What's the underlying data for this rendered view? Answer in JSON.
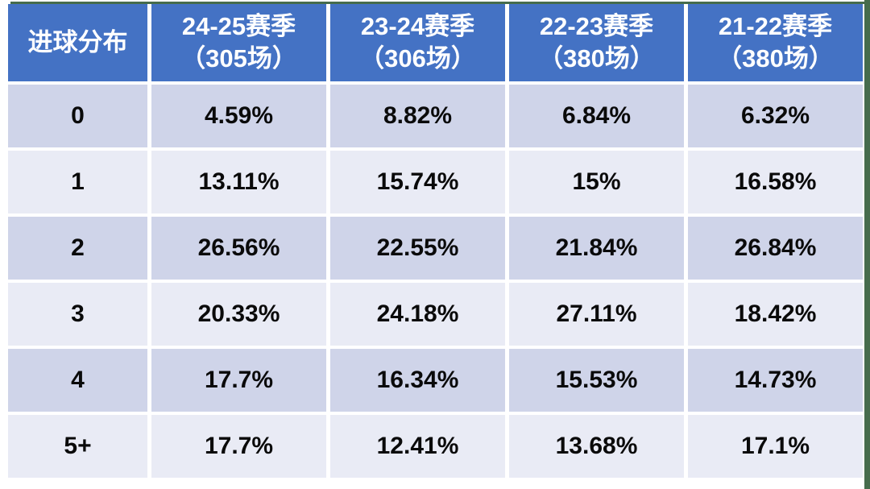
{
  "colors": {
    "header-bg": "#4472c4",
    "header-text": "#ffffff",
    "band-dark": "#cfd4e9",
    "band-light": "#e9ebf5",
    "cell-text": "#0a0a0a",
    "edge-green": "#466c4c",
    "page-bg": "#ffffff"
  },
  "table": {
    "columns": [
      {
        "label": "进球分布",
        "sub": ""
      },
      {
        "label": "24-25赛季",
        "sub": "（305场）"
      },
      {
        "label": "23-24赛季",
        "sub": "（306场）"
      },
      {
        "label": "22-23赛季",
        "sub": "（380场）"
      },
      {
        "label": "21-22赛季",
        "sub": "（380场）"
      }
    ],
    "rows": [
      {
        "label": "0",
        "values": [
          "4.59%",
          "8.82%",
          "6.84%",
          "6.32%"
        ]
      },
      {
        "label": "1",
        "values": [
          "13.11%",
          "15.74%",
          "15%",
          "16.58%"
        ]
      },
      {
        "label": "2",
        "values": [
          "26.56%",
          "22.55%",
          "21.84%",
          "26.84%"
        ]
      },
      {
        "label": "3",
        "values": [
          "20.33%",
          "24.18%",
          "27.11%",
          "18.42%"
        ]
      },
      {
        "label": "4",
        "values": [
          "17.7%",
          "16.34%",
          "15.53%",
          "14.73%"
        ]
      },
      {
        "label": "5+",
        "values": [
          "17.7%",
          "12.41%",
          "13.68%",
          "17.1%"
        ]
      }
    ]
  },
  "chart_data": {
    "type": "table",
    "title": "进球分布",
    "columns": [
      "进球分布",
      "24-25赛季（305场）",
      "23-24赛季（306场）",
      "22-23赛季（380场）",
      "21-22赛季（380场）"
    ],
    "rows": [
      [
        "0",
        "4.59%",
        "8.82%",
        "6.84%",
        "6.32%"
      ],
      [
        "1",
        "13.11%",
        "15.74%",
        "15%",
        "16.58%"
      ],
      [
        "2",
        "26.56%",
        "22.55%",
        "21.84%",
        "26.84%"
      ],
      [
        "3",
        "20.33%",
        "24.18%",
        "27.11%",
        "18.42%"
      ],
      [
        "4",
        "17.7%",
        "16.34%",
        "15.53%",
        "14.73%"
      ],
      [
        "5+",
        "17.7%",
        "12.41%",
        "13.68%",
        "17.1%"
      ]
    ],
    "layout_hints": {
      "header_fill": "#4472c4",
      "row_banding": [
        "#cfd4e9",
        "#e9ebf5"
      ],
      "grid": "white separators"
    }
  }
}
